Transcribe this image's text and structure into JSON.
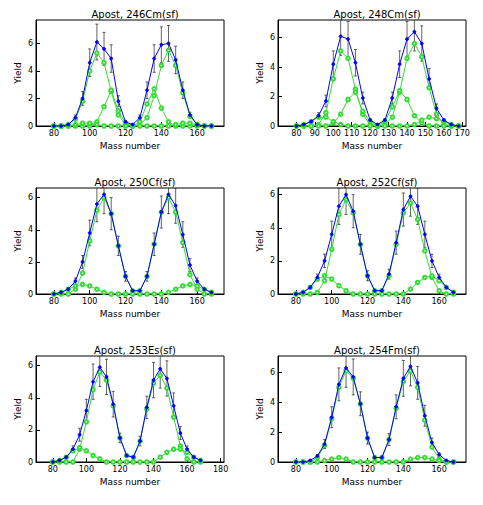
{
  "chart_data": [
    {
      "type": "line",
      "title": "Apost, 246Cm(sf)",
      "x_label": "Mass number",
      "y_label": "Yield",
      "xlim": [
        70,
        175
      ],
      "xticks": [
        80,
        100,
        120,
        140,
        160
      ],
      "ylim": [
        0,
        7.7
      ],
      "yticks": [
        0,
        2,
        4,
        6
      ],
      "x": [
        80,
        84,
        88,
        92,
        96,
        100,
        104,
        108,
        112,
        116,
        120,
        124,
        128,
        132,
        136,
        140,
        144,
        148,
        152,
        156,
        160,
        164,
        168
      ],
      "series": [
        {
          "color": "#0000ff",
          "marker": "circle",
          "line_style": "solid",
          "values": [
            0,
            0,
            0.1,
            0.6,
            2.0,
            4.6,
            6.1,
            5.6,
            4.9,
            1.8,
            0.3,
            0.1,
            0.6,
            2.6,
            4.9,
            5.9,
            6.0,
            4.8,
            2.6,
            0.8,
            0.1,
            0,
            0
          ],
          "errors": [
            0,
            0,
            0.05,
            0.2,
            0.5,
            1.0,
            1.3,
            1.2,
            1.0,
            0.4,
            0.1,
            0.05,
            0.2,
            0.6,
            1.0,
            1.3,
            1.3,
            1.0,
            0.6,
            0.2,
            0.05,
            0,
            0
          ]
        },
        {
          "color": "#33dd33",
          "marker": "open_circle",
          "line_style": "solid",
          "values": [
            0,
            0,
            0.1,
            0.5,
            1.8,
            4.0,
            5.3,
            4.6,
            2.5,
            0.8,
            0.1,
            0,
            0.1,
            0.6,
            2.2,
            4.4,
            5.5,
            4.4,
            2.4,
            0.7,
            0.1,
            0,
            0
          ]
        },
        {
          "color": "#33dd33",
          "marker": "open_circle",
          "line_style": "solid",
          "values": [
            0,
            0,
            0,
            0,
            0,
            0,
            0.3,
            1.4,
            2.6,
            1.1,
            0.2,
            0,
            0.3,
            1.6,
            2.7,
            1.3,
            0.3,
            0,
            0,
            0,
            0,
            0,
            0
          ]
        },
        {
          "color": "#33dd33",
          "marker": "open_circle",
          "line_style": "solid",
          "values": [
            0,
            0,
            0,
            0.1,
            0.2,
            0.2,
            0.1,
            0,
            0,
            0,
            0,
            0,
            0,
            0,
            0,
            0,
            0,
            0.1,
            0.2,
            0.2,
            0.1,
            0,
            0
          ]
        }
      ]
    },
    {
      "type": "line",
      "title": "Apost, 248Cm(sf)",
      "x_label": "Mass number",
      "y_label": "Yield",
      "xlim": [
        70,
        172
      ],
      "xticks": [
        80,
        90,
        100,
        110,
        120,
        130,
        140,
        150,
        160,
        170
      ],
      "ylim": [
        0,
        7.2
      ],
      "yticks": [
        0,
        2,
        4,
        6
      ],
      "x": [
        80,
        84,
        88,
        92,
        96,
        100,
        104,
        108,
        112,
        116,
        120,
        124,
        128,
        132,
        136,
        140,
        144,
        148,
        152,
        156,
        160,
        164,
        168
      ],
      "series": [
        {
          "color": "#0000ff",
          "marker": "circle",
          "line_style": "solid",
          "values": [
            0,
            0.1,
            0.3,
            0.7,
            1.7,
            4.2,
            6.1,
            5.9,
            4.3,
            1.9,
            0.4,
            0.1,
            0.4,
            1.9,
            4.2,
            5.9,
            6.4,
            5.6,
            3.2,
            1.2,
            0.4,
            0.1,
            0
          ],
          "errors": [
            0,
            0.05,
            0.1,
            0.2,
            0.4,
            0.9,
            1.3,
            1.2,
            0.9,
            0.4,
            0.1,
            0.05,
            0.1,
            0.4,
            0.9,
            1.2,
            1.3,
            1.2,
            0.7,
            0.3,
            0.1,
            0.05,
            0
          ]
        },
        {
          "color": "#33dd33",
          "marker": "open_circle",
          "line_style": "solid",
          "values": [
            0,
            0,
            0,
            0.1,
            0.9,
            3.2,
            5.1,
            4.6,
            2.5,
            0.8,
            0.1,
            0,
            0.1,
            0.6,
            2.3,
            4.6,
            5.6,
            4.7,
            2.6,
            0.8,
            0.1,
            0,
            0
          ]
        },
        {
          "color": "#33dd33",
          "marker": "open_circle",
          "line_style": "solid",
          "values": [
            0,
            0,
            0,
            0,
            0,
            0.2,
            0.8,
            1.8,
            2.3,
            1.0,
            0.3,
            0,
            0.3,
            1.3,
            2.4,
            1.8,
            0.7,
            0.2,
            0,
            0,
            0,
            0,
            0
          ]
        },
        {
          "color": "#33dd33",
          "marker": "open_circle",
          "line_style": "solid",
          "values": [
            0,
            0.1,
            0.3,
            0.6,
            0.6,
            0.3,
            0.1,
            0,
            0,
            0,
            0,
            0,
            0,
            0,
            0,
            0,
            0.1,
            0.4,
            0.6,
            0.5,
            0.3,
            0.1,
            0
          ]
        }
      ]
    },
    {
      "type": "line",
      "title": "Apost, 250Cf(sf)",
      "x_label": "Mass number",
      "y_label": "Yield",
      "xlim": [
        70,
        175
      ],
      "xticks": [
        80,
        100,
        120,
        140,
        160
      ],
      "ylim": [
        0,
        6.6
      ],
      "yticks": [
        0,
        2,
        4,
        6
      ],
      "x": [
        80,
        84,
        88,
        92,
        96,
        100,
        104,
        108,
        112,
        116,
        120,
        124,
        128,
        132,
        136,
        140,
        144,
        148,
        152,
        156,
        160,
        164,
        168
      ],
      "series": [
        {
          "color": "#0000ff",
          "marker": "circle",
          "line_style": "solid",
          "values": [
            0,
            0.1,
            0.3,
            0.8,
            2.0,
            3.8,
            5.6,
            6.2,
            5.0,
            3.0,
            1.1,
            0.2,
            0.2,
            1.1,
            3.1,
            5.1,
            6.2,
            5.5,
            3.7,
            1.8,
            0.8,
            0.3,
            0.1
          ],
          "errors": [
            0,
            0.05,
            0.1,
            0.2,
            0.4,
            0.8,
            1.1,
            1.2,
            1.0,
            0.6,
            0.3,
            0.05,
            0.05,
            0.3,
            0.7,
            1.0,
            1.2,
            1.1,
            0.8,
            0.4,
            0.2,
            0.1,
            0.05
          ]
        },
        {
          "color": "#33dd33",
          "marker": "open_circle",
          "line_style": "solid",
          "values": [
            0,
            0,
            0,
            0.3,
            1.3,
            3.3,
            5.2,
            6.0,
            5.0,
            3.0,
            1.1,
            0.2,
            0.2,
            1.1,
            3.1,
            5.1,
            6.0,
            5.1,
            3.2,
            1.2,
            0.3,
            0,
            0
          ]
        },
        {
          "color": "#33dd33",
          "marker": "open_circle",
          "line_style": "solid",
          "values": [
            0,
            0.1,
            0.3,
            0.5,
            0.6,
            0.5,
            0.3,
            0.1,
            0,
            0,
            0,
            0,
            0,
            0,
            0,
            0,
            0.1,
            0.3,
            0.5,
            0.6,
            0.5,
            0.3,
            0.1
          ]
        }
      ]
    },
    {
      "type": "line",
      "title": "Apost, 252Cf(sf)",
      "x_label": "Mass number",
      "y_label": "Yield",
      "xlim": [
        70,
        175
      ],
      "xticks": [
        80,
        100,
        120,
        140,
        160
      ],
      "ylim": [
        0,
        6.4
      ],
      "yticks": [
        0,
        2,
        4,
        6
      ],
      "x": [
        80,
        84,
        88,
        92,
        96,
        100,
        104,
        108,
        112,
        116,
        120,
        124,
        128,
        132,
        136,
        140,
        144,
        148,
        152,
        156,
        160,
        164,
        168
      ],
      "series": [
        {
          "color": "#0000ff",
          "marker": "circle",
          "line_style": "solid",
          "values": [
            0,
            0.1,
            0.4,
            1.0,
            2.0,
            3.6,
            5.3,
            6.0,
            5.0,
            3.0,
            1.1,
            0.2,
            0.2,
            1.2,
            3.1,
            5.1,
            5.9,
            5.3,
            3.6,
            2.0,
            1.0,
            0.4,
            0.1
          ],
          "errors": [
            0,
            0.05,
            0.1,
            0.2,
            0.4,
            0.8,
            1.1,
            1.2,
            1.0,
            0.6,
            0.3,
            0.05,
            0.05,
            0.3,
            0.7,
            1.0,
            1.2,
            1.1,
            0.8,
            0.4,
            0.2,
            0.1,
            0.05
          ]
        },
        {
          "color": "#33dd33",
          "marker": "open_circle",
          "line_style": "solid",
          "values": [
            0,
            0,
            0,
            0.1,
            0.8,
            2.7,
            4.8,
            5.7,
            4.9,
            3.0,
            1.1,
            0.2,
            0.2,
            1.1,
            3.0,
            4.9,
            5.5,
            4.5,
            2.6,
            1.0,
            0.2,
            0,
            0
          ]
        },
        {
          "color": "#33dd33",
          "marker": "open_circle",
          "line_style": "solid",
          "values": [
            0,
            0.1,
            0.4,
            0.9,
            1.1,
            0.9,
            0.5,
            0.2,
            0,
            0,
            0,
            0,
            0,
            0,
            0,
            0,
            0.3,
            0.7,
            1.0,
            1.1,
            0.8,
            0.4,
            0.1
          ]
        }
      ]
    },
    {
      "type": "line",
      "title": "Apost, 253Es(sf)",
      "x_label": "Mass number",
      "y_label": "Yield",
      "xlim": [
        70,
        182
      ],
      "xticks": [
        80,
        100,
        120,
        140,
        160,
        180
      ],
      "ylim": [
        0,
        6.6
      ],
      "yticks": [
        0,
        2,
        4,
        6
      ],
      "x": [
        80,
        84,
        88,
        92,
        96,
        100,
        104,
        108,
        112,
        116,
        120,
        124,
        128,
        132,
        136,
        140,
        144,
        148,
        152,
        156,
        160,
        164,
        168
      ],
      "series": [
        {
          "color": "#0000ff",
          "marker": "circle",
          "line_style": "solid",
          "values": [
            0,
            0.1,
            0.3,
            0.8,
            1.7,
            3.2,
            5.0,
            5.9,
            5.3,
            3.6,
            1.5,
            0.4,
            0.3,
            1.3,
            3.4,
            5.1,
            5.8,
            5.2,
            3.5,
            1.8,
            0.8,
            0.3,
            0.1
          ],
          "errors": [
            0,
            0.05,
            0.1,
            0.2,
            0.4,
            0.7,
            1.1,
            1.2,
            1.1,
            0.8,
            0.3,
            0.1,
            0.1,
            0.3,
            0.7,
            1.1,
            1.2,
            1.1,
            0.8,
            0.4,
            0.2,
            0.1,
            0.05
          ]
        },
        {
          "color": "#33dd33",
          "marker": "open_circle",
          "line_style": "solid",
          "values": [
            0,
            0,
            0,
            0,
            0.8,
            2.5,
            4.5,
            5.6,
            5.1,
            3.5,
            1.5,
            0.4,
            0.3,
            1.3,
            3.3,
            4.9,
            5.4,
            4.6,
            2.8,
            1.0,
            0.2,
            0,
            0
          ]
        },
        {
          "color": "#33dd33",
          "marker": "open_circle",
          "line_style": "solid",
          "values": [
            0,
            0.1,
            0.3,
            0.7,
            0.9,
            0.7,
            0.4,
            0.2,
            0,
            0,
            0,
            0,
            0,
            0,
            0,
            0,
            0.3,
            0.6,
            0.8,
            0.8,
            0.6,
            0.3,
            0.1
          ]
        }
      ]
    },
    {
      "type": "line",
      "title": "Apost, 254Fm(sf)",
      "x_label": "Mass number",
      "y_label": "Yield",
      "xlim": [
        70,
        175
      ],
      "xticks": [
        80,
        100,
        120,
        140,
        160
      ],
      "ylim": [
        0,
        7.1
      ],
      "yticks": [
        0,
        2,
        4,
        6
      ],
      "x": [
        80,
        84,
        88,
        92,
        96,
        100,
        104,
        108,
        112,
        116,
        120,
        124,
        128,
        132,
        136,
        140,
        144,
        148,
        152,
        156,
        160,
        164,
        168
      ],
      "series": [
        {
          "color": "#0000ff",
          "marker": "circle",
          "line_style": "solid",
          "values": [
            0,
            0,
            0.1,
            0.4,
            1.2,
            3.0,
            5.2,
            6.3,
            5.7,
            3.9,
            1.6,
            0.3,
            0.3,
            1.5,
            3.7,
            5.6,
            6.4,
            5.3,
            3.1,
            1.3,
            0.5,
            0.1,
            0
          ],
          "errors": [
            0,
            0,
            0.05,
            0.1,
            0.3,
            0.7,
            1.1,
            1.3,
            1.2,
            0.8,
            0.4,
            0.1,
            0.1,
            0.4,
            0.8,
            1.2,
            1.3,
            1.1,
            0.7,
            0.3,
            0.1,
            0.05,
            0
          ]
        },
        {
          "color": "#33dd33",
          "marker": "open_circle",
          "line_style": "solid",
          "values": [
            0,
            0,
            0,
            0.3,
            1.1,
            2.9,
            5.0,
            6.1,
            5.6,
            3.9,
            1.6,
            0.3,
            0.3,
            1.5,
            3.6,
            5.4,
            6.1,
            5.0,
            2.8,
            1.0,
            0.2,
            0,
            0
          ]
        },
        {
          "color": "#33dd33",
          "marker": "open_circle",
          "line_style": "solid",
          "values": [
            0,
            0,
            0,
            0,
            0.1,
            0.2,
            0.3,
            0.2,
            0,
            0,
            0,
            0,
            0,
            0,
            0,
            0,
            0.2,
            0.3,
            0.3,
            0.2,
            0.1,
            0,
            0
          ]
        }
      ]
    }
  ]
}
